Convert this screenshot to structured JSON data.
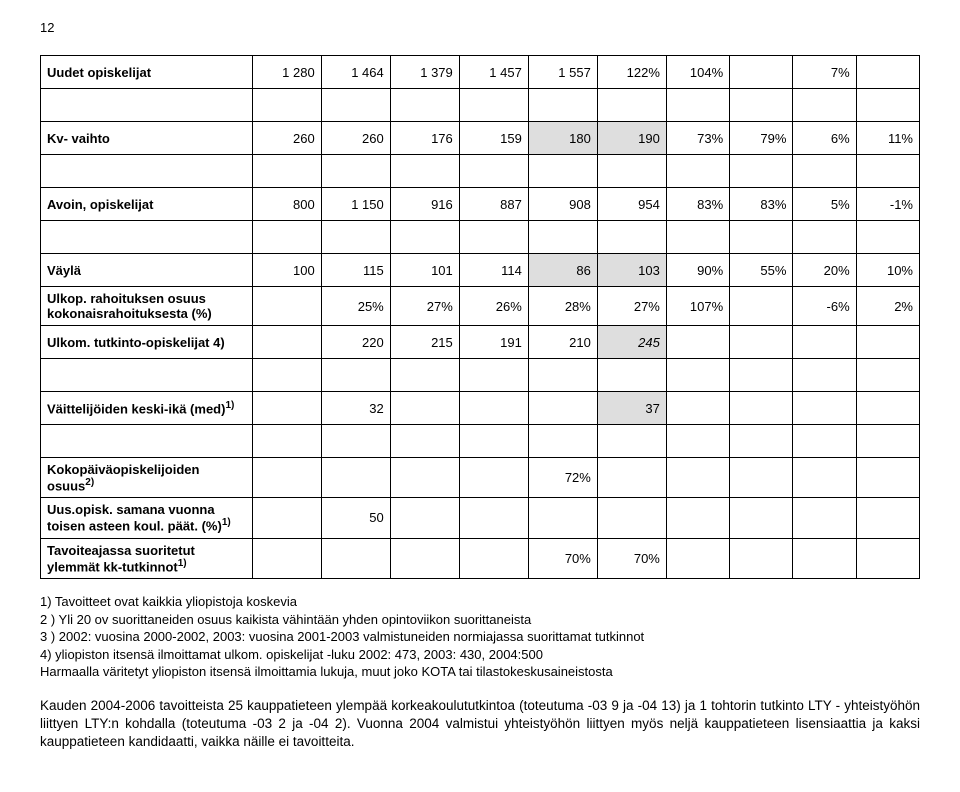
{
  "page_number": "12",
  "table": {
    "rows": {
      "r0": {
        "label": "Uudet opiskelijat",
        "c1": "1 280",
        "c2": "1 464",
        "c3": "1 379",
        "c4": "1 457",
        "c5": "1 557",
        "c6": "122%",
        "c7": "104%",
        "c8": "",
        "c9": "7%",
        "c10": ""
      },
      "r1": {
        "label": "Kv- vaihto",
        "c1": "260",
        "c2": "260",
        "c3": "176",
        "c4": "159",
        "c5": "180",
        "c6": "190",
        "c7": "73%",
        "c8": "79%",
        "c9": "6%",
        "c10": "11%"
      },
      "r2": {
        "label": "Avoin, opiskelijat",
        "c1": "800",
        "c2": "1 150",
        "c3": "916",
        "c4": "887",
        "c5": "908",
        "c6": "954",
        "c7": "83%",
        "c8": "83%",
        "c9": "5%",
        "c10": "-1%"
      },
      "r3": {
        "label": "Väylä",
        "c1": "100",
        "c2": "115",
        "c3": "101",
        "c4": "114",
        "c5": "86",
        "c6": "103",
        "c7": "90%",
        "c8": "55%",
        "c9": "20%",
        "c10": "10%"
      },
      "r4": {
        "label": "Ulkop. rahoituksen osuus kokonaisrahoituksesta (%)",
        "c1": "",
        "c2": "25%",
        "c3": "27%",
        "c4": "26%",
        "c5": "28%",
        "c6": "27%",
        "c7": "107%",
        "c8": "",
        "c9": "-6%",
        "c10": "2%"
      },
      "r5": {
        "label": "Ulkom. tutkinto-opiskelijat 4)",
        "c1": "",
        "c2": "220",
        "c3": "215",
        "c4": "191",
        "c5": "210",
        "c6": "245",
        "c7": "",
        "c8": "",
        "c9": "",
        "c10": ""
      },
      "r6": {
        "label": "Väittelijöiden keski-ikä (med)",
        "sup": "1)",
        "c1": "",
        "c2": "32",
        "c3": "",
        "c4": "",
        "c5": "",
        "c6": "37",
        "c7": "",
        "c8": "",
        "c9": "",
        "c10": ""
      },
      "r7": {
        "label": "Kokopäiväopiskelijoiden osuus",
        "sup": "2)",
        "c1": "",
        "c2": "",
        "c3": "",
        "c4": "",
        "c5": "72%",
        "c6": "",
        "c7": "",
        "c8": "",
        "c9": "",
        "c10": ""
      },
      "r8": {
        "label": "Uus.opisk. samana vuonna toisen asteen koul. päät. (%)",
        "sup": "1)",
        "c1": "",
        "c2": "50",
        "c3": "",
        "c4": "",
        "c5": "",
        "c6": "",
        "c7": "",
        "c8": "",
        "c9": "",
        "c10": ""
      },
      "r9": {
        "label": "Tavoiteajassa suoritetut ylemmät kk-tutkinnot",
        "sup": "1)",
        "c1": "",
        "c2": "",
        "c3": "",
        "c4": "",
        "c5": "70%",
        "c6": "70%",
        "c7": "",
        "c8": "",
        "c9": "",
        "c10": ""
      }
    }
  },
  "notes": {
    "n1": "1) Tavoitteet ovat kaikkia yliopistoja koskevia",
    "n2": "2 ) Yli 20 ov suorittaneiden osuus kaikista vähintään yhden opintoviikon suorittaneista",
    "n3": "3 ) 2002: vuosina 2000-2002, 2003: vuosina 2001-2003 valmistuneiden normiajassa suorittamat tutkinnot",
    "n4": "4) yliopiston itsensä ilmoittamat ulkom. opiskelijat -luku 2002: 473, 2003: 430, 2004:500",
    "n5": "Harmaalla väritetyt yliopiston itsensä ilmoittamia lukuja, muut joko KOTA tai tilastokeskusaineistosta"
  },
  "body": "Kauden 2004-2006 tavoitteista 25 kauppatieteen ylempää korkeakoulututkintoa (toteutuma -03 9 ja -04 13) ja 1 tohtorin tutkinto LTY - yhteistyöhön liittyen LTY:n kohdalla (toteutuma -03 2 ja -04  2). Vuonna 2004 valmistui yhteistyöhön liittyen myös neljä kauppatieteen lisensiaattia ja kaksi kauppatieteen kandidaatti, vaikka näille ei tavoitteita.",
  "colors": {
    "shade": "#dedede",
    "text": "#000000",
    "border": "#000000",
    "background": "#ffffff"
  }
}
